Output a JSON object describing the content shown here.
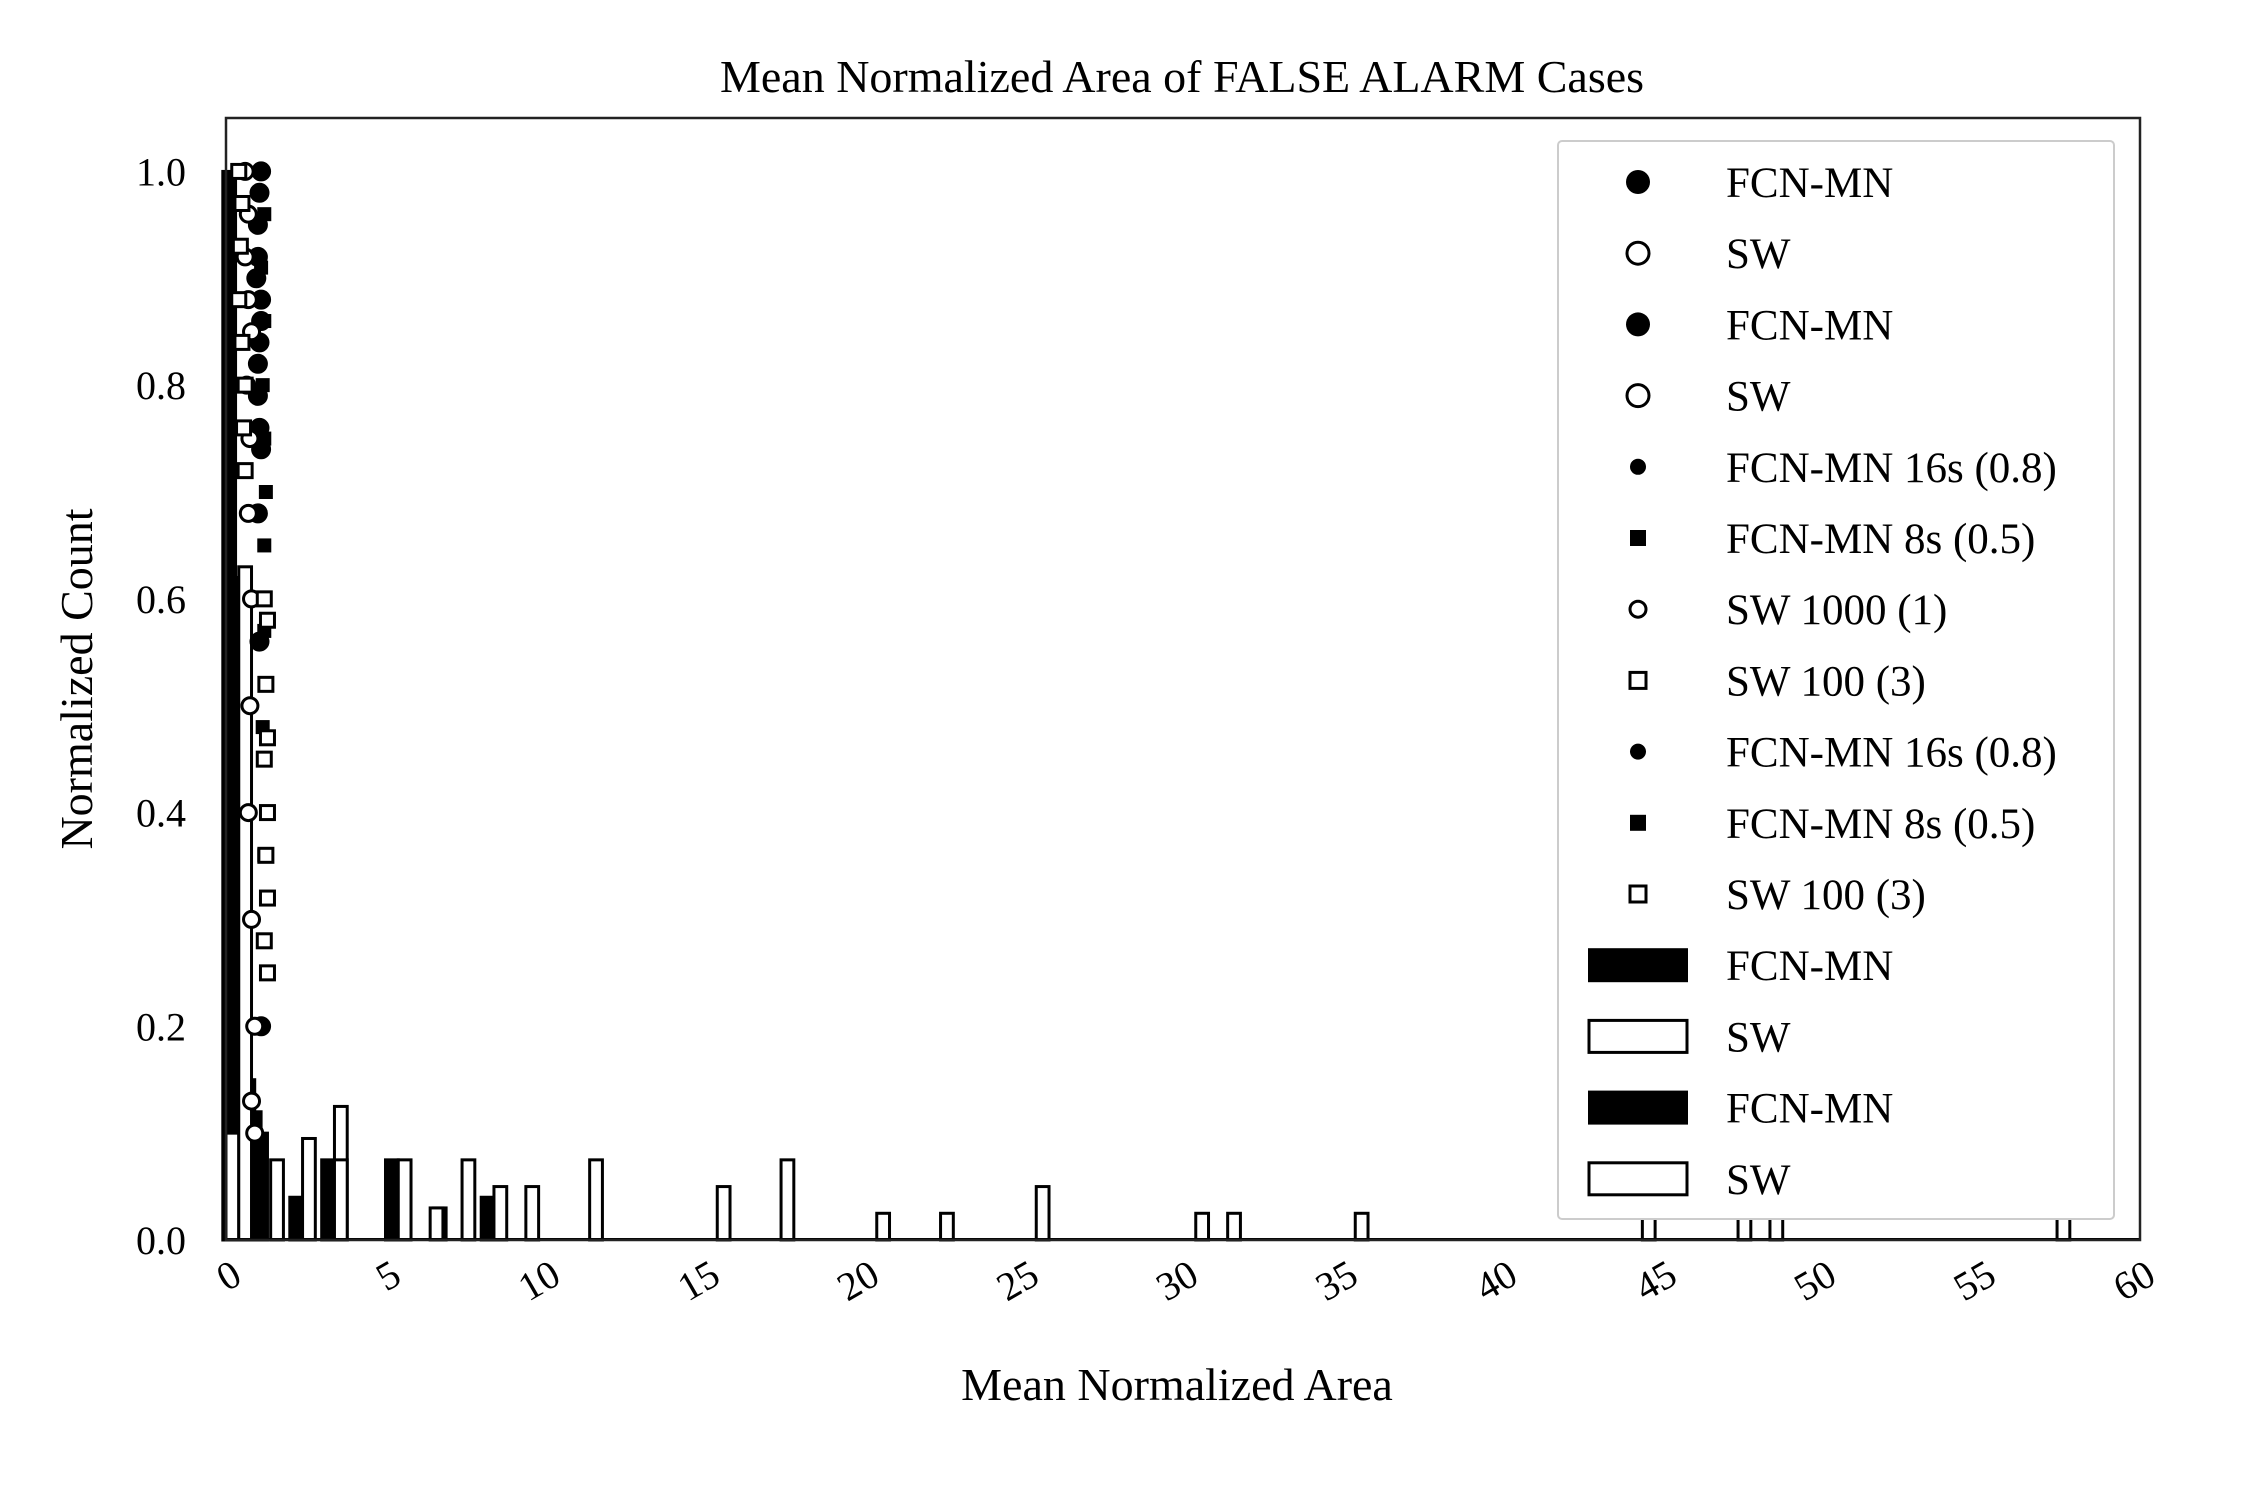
{
  "chart_data": {
    "type": "bar",
    "title": "Mean Normalized Area of FALSE ALARM Cases",
    "xlabel": "Mean Normalized Area",
    "ylabel": "Normalized Count",
    "xlim": [
      0,
      60
    ],
    "ylim": [
      0,
      1.05
    ],
    "x_ticks": [
      "0",
      "5",
      "10",
      "15",
      "20",
      "25",
      "30",
      "35",
      "40",
      "45",
      "50",
      "55",
      "60"
    ],
    "y_ticks": [
      "0.0",
      "0.2",
      "0.4",
      "0.6",
      "0.8",
      "1.0"
    ],
    "grid": false,
    "legend_position": "top-right",
    "legend": [
      {
        "label": "FCN-MN",
        "marker": "circle-filled"
      },
      {
        "label": "SW",
        "marker": "circle-open"
      },
      {
        "label": "FCN-MN",
        "marker": "circle-filled"
      },
      {
        "label": "SW",
        "marker": "circle-open"
      },
      {
        "label": "FCN-MN 16s (0.8)",
        "marker": "small-circle-filled"
      },
      {
        "label": "FCN-MN 8s (0.5)",
        "marker": "small-square-filled"
      },
      {
        "label": "SW 1000 (1)",
        "marker": "small-circle-open"
      },
      {
        "label": "SW 100 (3)",
        "marker": "small-square-open"
      },
      {
        "label": "FCN-MN 16s (0.8)",
        "marker": "small-circle-filled"
      },
      {
        "label": "FCN-MN 8s (0.5)",
        "marker": "small-square-filled"
      },
      {
        "label": "SW 100 (3)",
        "marker": "small-square-open"
      },
      {
        "label": "FCN-MN",
        "marker": "patch-filled"
      },
      {
        "label": "SW",
        "marker": "patch-open"
      },
      {
        "label": "FCN-MN",
        "marker": "patch-filled"
      },
      {
        "label": "SW",
        "marker": "patch-open"
      }
    ],
    "series": [
      {
        "name": "FCN-MN",
        "style": "bar-filled",
        "bar_width": 0.4,
        "x": [
          0.1,
          0.3,
          0.5,
          0.7,
          0.9,
          1.1,
          2.2,
          3.2,
          5.2,
          6.7,
          8.2
        ],
        "y": [
          1.0,
          0.62,
          0.25,
          0.15,
          0.12,
          0.1,
          0.04,
          0.075,
          0.075,
          0.03,
          0.04
        ]
      },
      {
        "name": "SW",
        "style": "bar-open",
        "bar_width": 0.4,
        "x": [
          0.2,
          0.6,
          1.6,
          2.6,
          3.6,
          3.6,
          5.6,
          6.6,
          7.6,
          8.6,
          9.6,
          11.6,
          15.6,
          17.6,
          20.6,
          22.6,
          25.6,
          30.6,
          31.6,
          35.6,
          44.6,
          47.6,
          48.6,
          57.6
        ],
        "y": [
          0.1,
          0.63,
          0.075,
          0.095,
          0.125,
          0.075,
          0.075,
          0.03,
          0.075,
          0.05,
          0.05,
          0.075,
          0.05,
          0.075,
          0.025,
          0.025,
          0.05,
          0.025,
          0.025,
          0.025,
          0.025,
          0.025,
          0.025,
          0.025
        ]
      },
      {
        "name": "FCN-MN",
        "style": "circle-filled",
        "x": [
          1.1,
          1.05,
          1.0,
          1.0,
          0.95,
          1.1,
          1.1,
          1.05,
          1.0,
          1.0,
          1.05,
          1.1,
          1.0,
          1.05,
          1.1
        ],
        "y": [
          1.0,
          0.98,
          0.95,
          0.92,
          0.9,
          0.88,
          0.86,
          0.84,
          0.82,
          0.79,
          0.76,
          0.74,
          0.68,
          0.56,
          0.2
        ]
      },
      {
        "name": "SW",
        "style": "circle-open",
        "x": [
          0.6,
          0.7,
          0.6,
          0.7,
          0.8,
          0.65,
          0.75,
          0.7,
          0.8,
          0.75,
          0.7,
          0.8,
          0.9,
          0.8,
          0.9
        ],
        "y": [
          1.0,
          0.96,
          0.92,
          0.88,
          0.85,
          0.8,
          0.75,
          0.68,
          0.6,
          0.5,
          0.4,
          0.3,
          0.2,
          0.13,
          0.1
        ]
      },
      {
        "name": "FCN-MN 8s (0.5)",
        "style": "square-filled",
        "x": [
          1.2,
          1.1,
          1.2,
          1.15,
          1.2,
          1.25,
          1.2,
          1.2,
          1.15,
          1.2
        ],
        "y": [
          0.96,
          0.91,
          0.86,
          0.8,
          0.75,
          0.7,
          0.65,
          0.57,
          0.48,
          0.36
        ]
      },
      {
        "name": "SW 100 (3)",
        "style": "square-open",
        "x": [
          0.4,
          0.5,
          0.45,
          0.4,
          0.5,
          0.6,
          0.55,
          0.6,
          1.2,
          1.3,
          1.25,
          1.3,
          1.2,
          1.3,
          1.25,
          1.3,
          1.2,
          1.3
        ],
        "y": [
          1.0,
          0.97,
          0.93,
          0.88,
          0.84,
          0.8,
          0.76,
          0.72,
          0.6,
          0.58,
          0.52,
          0.47,
          0.45,
          0.4,
          0.36,
          0.32,
          0.28,
          0.25
        ]
      }
    ]
  }
}
